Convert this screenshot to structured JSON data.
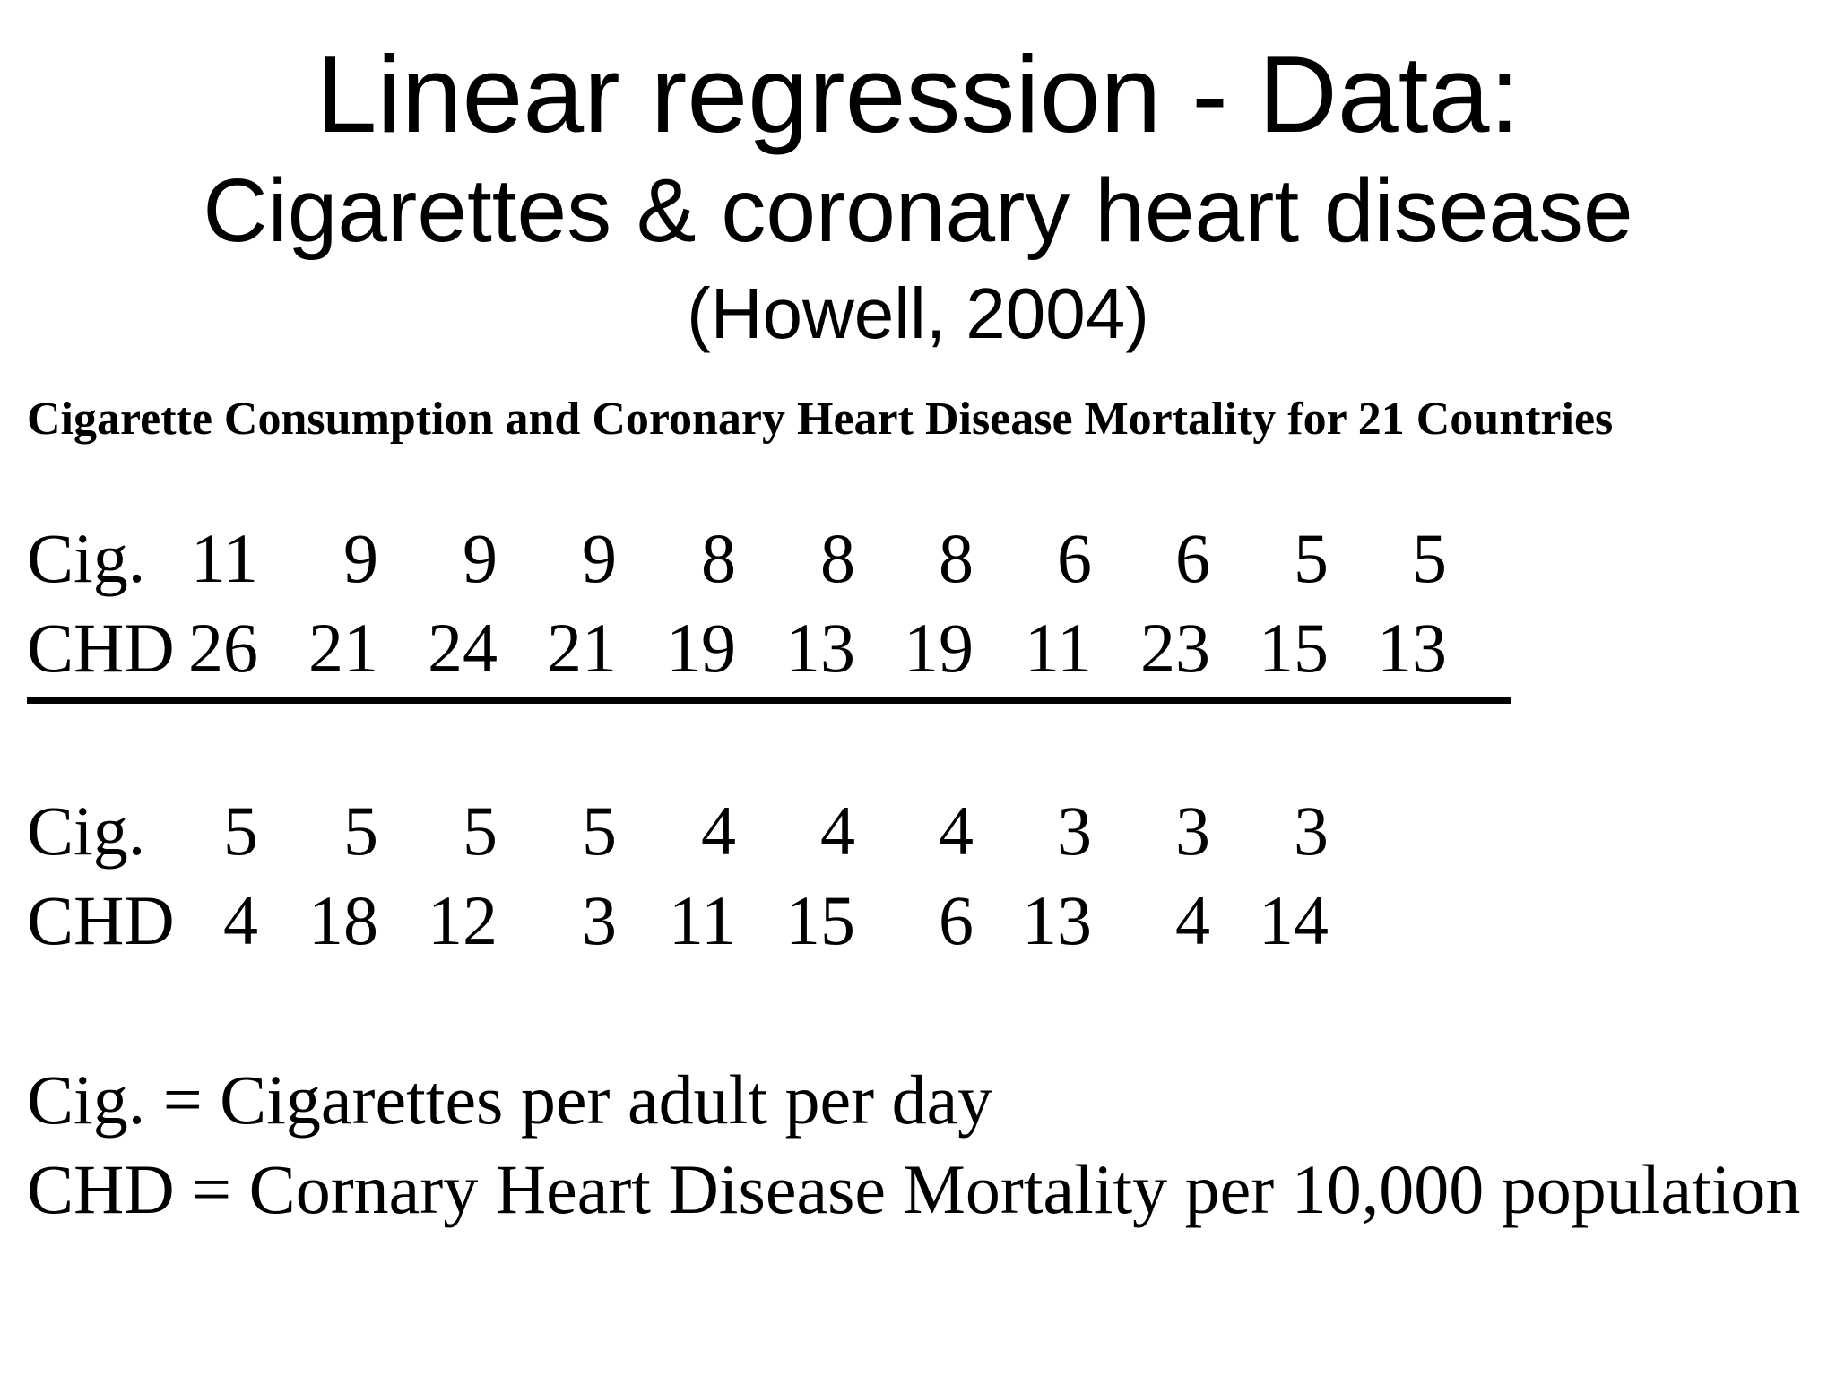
{
  "title": {
    "line1": "Linear regression - Data:",
    "line2": "Cigarettes & coronary heart disease",
    "line3": "(Howell, 2004)"
  },
  "table": {
    "heading": "Cigarette Consumption and Coronary Heart Disease Mortality for 21 Countries",
    "block1": {
      "cig_label": "Cig.",
      "chd_label": "CHD",
      "cig": [
        "11",
        "9",
        "9",
        "9",
        "8",
        "8",
        "8",
        "6",
        "6",
        "5",
        "5"
      ],
      "chd": [
        "26",
        "21",
        "24",
        "21",
        "19",
        "13",
        "19",
        "11",
        "23",
        "15",
        "13"
      ]
    },
    "block2": {
      "cig_label": "Cig.",
      "chd_label": "CHD",
      "cig": [
        "5",
        "5",
        "5",
        "5",
        "4",
        "4",
        "4",
        "3",
        "3",
        "3"
      ],
      "chd": [
        "4",
        "18",
        "12",
        "3",
        "11",
        "15",
        "6",
        "13",
        "4",
        "14"
      ]
    }
  },
  "legend": {
    "cig_def": "Cig. = Cigarettes per adult per day",
    "chd_def": "CHD = Cornary Heart Disease Mortality per 10,000 population"
  }
}
